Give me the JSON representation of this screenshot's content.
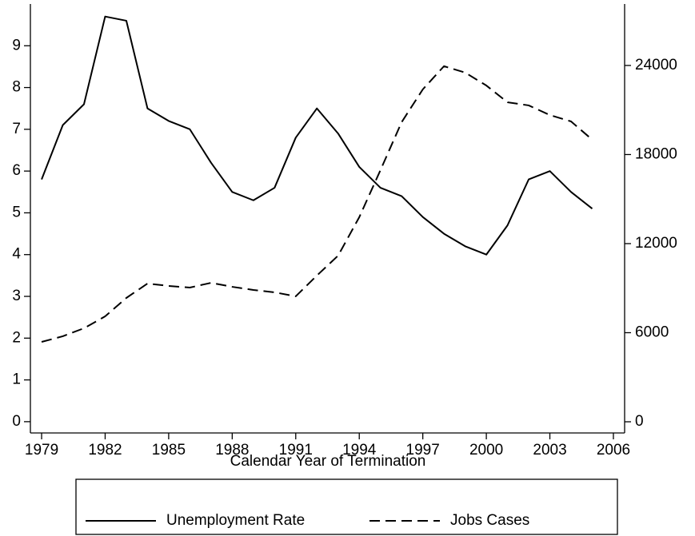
{
  "chart_data": {
    "type": "line",
    "xlabel": "Calendar Year of Termination",
    "x": [
      1979,
      1980,
      1981,
      1982,
      1983,
      1984,
      1985,
      1986,
      1987,
      1988,
      1989,
      1990,
      1991,
      1992,
      1993,
      1994,
      1995,
      1996,
      1997,
      1998,
      1999,
      2000,
      2001,
      2002,
      2003,
      2004,
      2005
    ],
    "series": [
      {
        "name": "Unemployment Rate",
        "color": "#000000",
        "dash": "solid",
        "values": [
          5.8,
          7.1,
          7.6,
          9.7,
          9.6,
          7.5,
          7.2,
          7.0,
          6.2,
          5.5,
          5.3,
          5.6,
          6.8,
          7.5,
          6.9,
          6.1,
          5.6,
          5.4,
          4.9,
          4.5,
          4.2,
          4.0,
          4.7,
          5.8,
          6.0,
          5.5,
          5.1
        ]
      },
      {
        "name": "Jobs Cases",
        "color": "#000000",
        "dash": "dashed",
        "axis": "y2",
        "values": [
          5380,
          5760,
          6300,
          7100,
          8340,
          9310,
          9150,
          9040,
          9360,
          9090,
          8880,
          8720,
          8450,
          9850,
          11190,
          13780,
          16950,
          20180,
          22390,
          23950,
          23520,
          22650,
          21520,
          21310,
          20660,
          20230,
          19000
        ]
      }
    ],
    "xlim": [
      1978.47,
      2006.53
    ],
    "xticks": [
      1979,
      1982,
      1985,
      1988,
      1991,
      1994,
      1997,
      2000,
      2003,
      2006
    ],
    "ylim": [
      -0.27,
      10.0
    ],
    "yticks": [
      0,
      1,
      2,
      3,
      4,
      5,
      6,
      7,
      8,
      9
    ],
    "y2lim": [
      -753,
      28140
    ],
    "y2ticks": [
      0,
      6000,
      12000,
      18000,
      24000
    ],
    "legend": "bottom"
  }
}
